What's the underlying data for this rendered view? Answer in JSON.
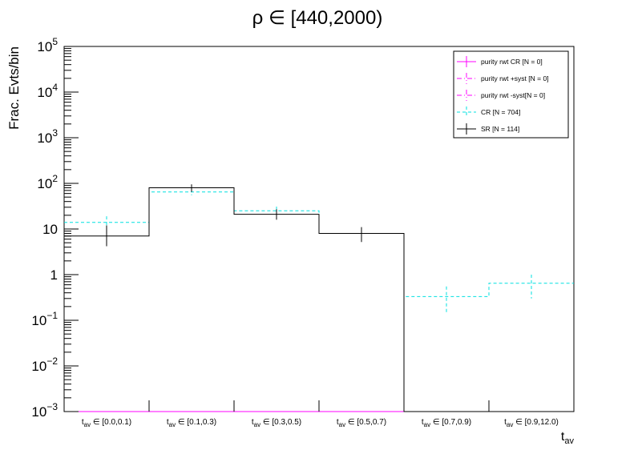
{
  "chart_data": {
    "type": "histogram",
    "title": "ρ ∈ [440,2000)",
    "xlabel": "t",
    "xlabel_sub": "av",
    "ylabel": "Frac. Evts/bin",
    "yscale": "log",
    "ylim": [
      0.001,
      100000
    ],
    "y_ticks": [
      {
        "value": 100000,
        "base": "10",
        "exp": "5"
      },
      {
        "value": 10000,
        "base": "10",
        "exp": "4"
      },
      {
        "value": 1000,
        "base": "10",
        "exp": "3"
      },
      {
        "value": 100,
        "base": "10",
        "exp": "2"
      },
      {
        "value": 10,
        "base": "10",
        "exp": ""
      },
      {
        "value": 1,
        "base": "1",
        "exp": ""
      },
      {
        "value": 0.1,
        "base": "10",
        "exp": "−1"
      },
      {
        "value": 0.01,
        "base": "10",
        "exp": "−2"
      },
      {
        "value": 0.001,
        "base": "10",
        "exp": "−3"
      }
    ],
    "categories": [
      {
        "pre": "t",
        "sub": "av",
        "post": " ∈ [0.0,0.1)"
      },
      {
        "pre": "t",
        "sub": "av",
        "post": " ∈ [0.1,0.3)"
      },
      {
        "pre": "t",
        "sub": "av",
        "post": " ∈ [0.3,0.5)"
      },
      {
        "pre": "t",
        "sub": "av",
        "post": " ∈ [0.5,0.7)"
      },
      {
        "pre": "t",
        "sub": "av",
        "post": " ∈ [0.7,0.9)"
      },
      {
        "pre": "t",
        "sub": "av",
        "post": " ∈ [0.9,12.0)"
      }
    ],
    "series": [
      {
        "name": "purity rwt CR [N = 0]",
        "color": "#ff00ff",
        "style": "solid",
        "values": [
          0,
          0,
          0,
          0,
          0,
          0
        ]
      },
      {
        "name": "purity rwt +syst [N = 0]",
        "color": "#ff00ff",
        "style": "dashdot",
        "values": [
          0,
          0,
          0,
          0,
          0,
          0
        ]
      },
      {
        "name": "purity rwt -syst[N = 0]",
        "color": "#ff00ff",
        "style": "dashdot",
        "values": [
          0,
          0,
          0,
          0,
          0,
          0
        ]
      },
      {
        "name": "CR [N = 704]",
        "color": "#00e0e0",
        "style": "dashed",
        "values": [
          14,
          65,
          25,
          8,
          0.33,
          0.65
        ],
        "err_low": [
          10,
          55,
          19,
          5.5,
          0.15,
          0.3
        ],
        "err_high": [
          19,
          76,
          31,
          10.5,
          0.55,
          1.0
        ]
      },
      {
        "name": "SR [N = 114]",
        "color": "#000000",
        "style": "solid",
        "values": [
          7,
          80,
          21,
          8,
          0,
          0
        ],
        "err_low": [
          4.2,
          65,
          16,
          5.2,
          0,
          0
        ],
        "err_high": [
          12,
          95,
          27,
          11,
          0,
          0
        ]
      }
    ],
    "legend_position": "top-right",
    "grid": false
  }
}
